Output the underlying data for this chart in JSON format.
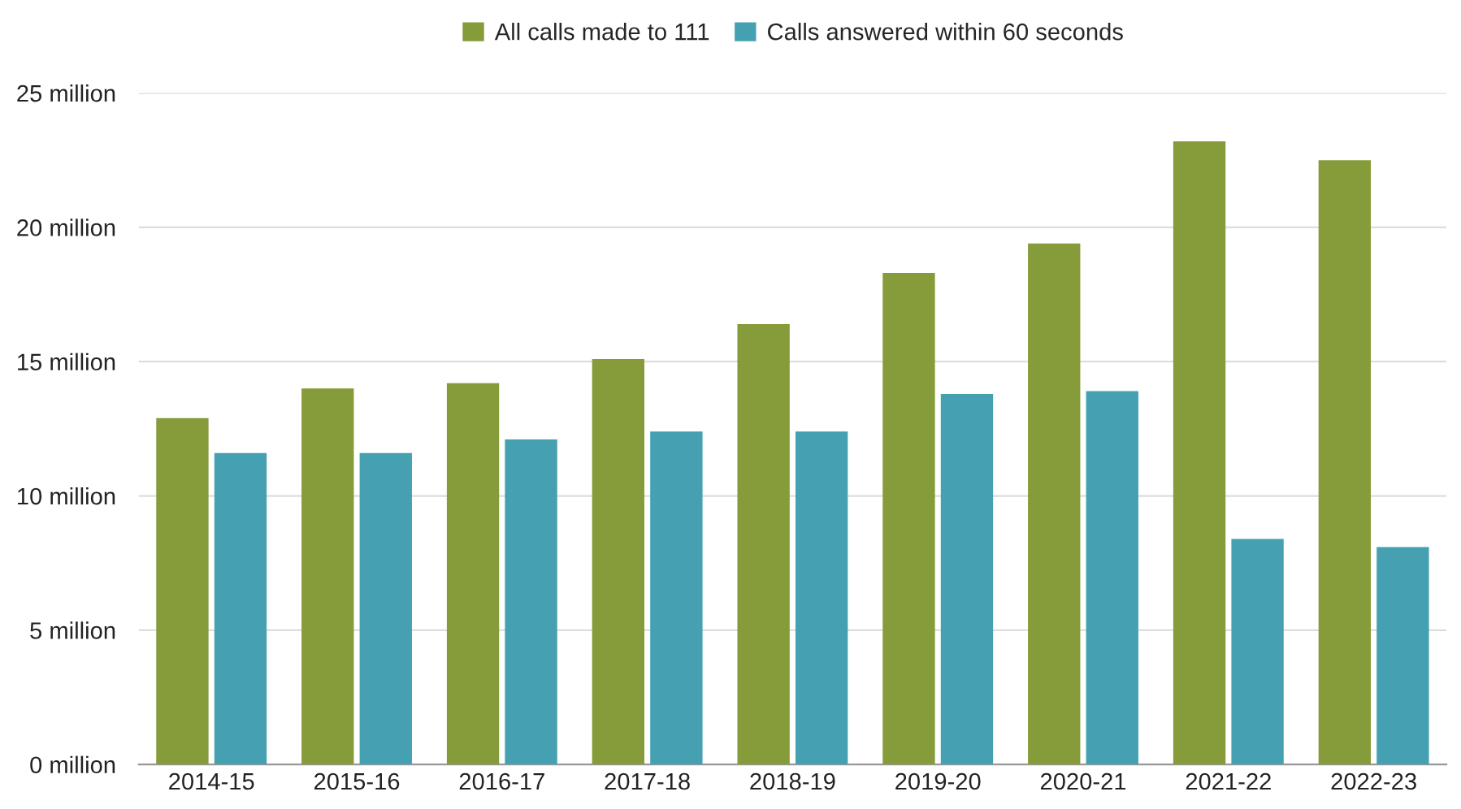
{
  "chart_data": {
    "type": "bar",
    "categories": [
      "2014-15",
      "2015-16",
      "2016-17",
      "2017-18",
      "2018-19",
      "2019-20",
      "2020-21",
      "2021-22",
      "2022-23"
    ],
    "series": [
      {
        "name": "All calls made to 111",
        "color": "#869c3a",
        "values": [
          12.9,
          14.0,
          14.2,
          15.1,
          16.4,
          18.3,
          19.4,
          23.2,
          22.5
        ]
      },
      {
        "name": "Calls answered within 60 seconds",
        "color": "#45a1b2",
        "values": [
          11.6,
          11.6,
          12.1,
          12.4,
          12.4,
          13.8,
          13.9,
          8.4,
          8.1
        ]
      }
    ],
    "ylim": [
      0,
      25
    ],
    "yticks": [
      {
        "value": 0,
        "label": "0 million"
      },
      {
        "value": 5,
        "label": "5 million"
      },
      {
        "value": 10,
        "label": "10 million"
      },
      {
        "value": 15,
        "label": "15 million"
      },
      {
        "value": 20,
        "label": "20 million"
      },
      {
        "value": 25,
        "label": "25 million"
      }
    ],
    "grid": "y",
    "legend": "top"
  }
}
